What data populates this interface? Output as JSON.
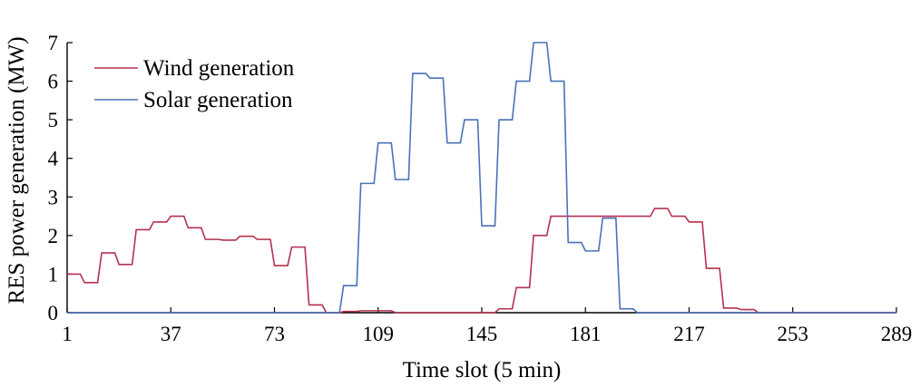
{
  "chart_data": {
    "type": "line",
    "xlabel": "Time slot (5 min)",
    "ylabel": "RES power generation (MW)",
    "xlim": [
      1,
      289
    ],
    "ylim": [
      0,
      7
    ],
    "xticks": [
      1,
      37,
      73,
      109,
      145,
      181,
      217,
      253,
      289
    ],
    "yticks": [
      0,
      1,
      2,
      3,
      4,
      5,
      6,
      7
    ],
    "grid": false,
    "legend_position": "top-left",
    "series": [
      {
        "name": "Wind generation",
        "color": "#b5314f",
        "step": true,
        "x": [
          1,
          7,
          13,
          19,
          25,
          31,
          37,
          43,
          49,
          55,
          61,
          67,
          73,
          79,
          85,
          91,
          97,
          103,
          109,
          115,
          121,
          127,
          133,
          139,
          145,
          151,
          157,
          163,
          169,
          175,
          181,
          187,
          193,
          199,
          205,
          211,
          217,
          223,
          229,
          235,
          241,
          247,
          253,
          259,
          265,
          271,
          277,
          283,
          289
        ],
        "values": [
          1.0,
          0.78,
          1.55,
          1.25,
          2.15,
          2.35,
          2.5,
          2.2,
          1.9,
          1.88,
          1.98,
          1.9,
          1.22,
          1.7,
          0.2,
          0.0,
          0.03,
          0.05,
          0.05,
          0.0,
          0.0,
          0.0,
          0.0,
          0.0,
          0.0,
          0.1,
          0.65,
          2.0,
          2.5,
          2.5,
          2.5,
          2.5,
          2.5,
          2.5,
          2.7,
          2.5,
          2.35,
          1.15,
          0.12,
          0.08,
          0.0,
          0.0,
          0.0,
          0.0,
          0.0,
          0.0,
          0.0,
          0.0,
          0.0
        ]
      },
      {
        "name": "Solar generation",
        "color": "#4a72b8",
        "step": true,
        "x": [
          1,
          7,
          13,
          19,
          25,
          31,
          37,
          43,
          49,
          55,
          61,
          67,
          73,
          79,
          85,
          91,
          97,
          103,
          109,
          115,
          121,
          127,
          133,
          139,
          145,
          151,
          157,
          163,
          169,
          175,
          181,
          187,
          193,
          199,
          205,
          211,
          217,
          223,
          229,
          235,
          241,
          247,
          253,
          259,
          265,
          271,
          277,
          283,
          289
        ],
        "values": [
          0,
          0,
          0,
          0,
          0,
          0,
          0,
          0,
          0,
          0,
          0,
          0,
          0,
          0,
          0,
          0,
          0.7,
          3.35,
          4.4,
          3.45,
          6.2,
          6.08,
          4.4,
          5.0,
          2.25,
          5.0,
          6.0,
          7.0,
          6.0,
          1.82,
          1.6,
          2.45,
          0.1,
          0,
          0,
          0,
          0,
          0,
          0,
          0,
          0,
          0,
          0,
          0,
          0,
          0,
          0,
          0,
          0
        ]
      }
    ]
  }
}
